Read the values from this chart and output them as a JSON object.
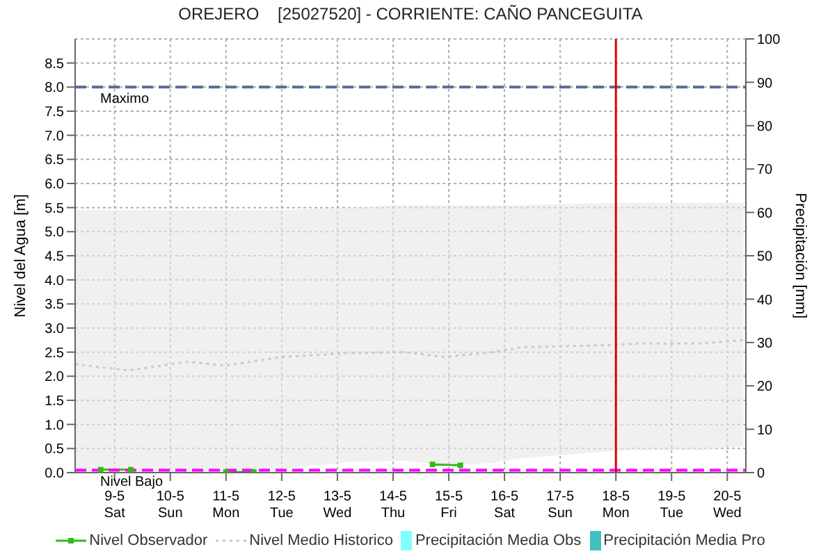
{
  "chart_data": {
    "type": "line",
    "title": "OREJERO    [25027520] - CORRIENTE: CAÑO PANCEGUITA",
    "ylabel": "Nivel del Agua [m]",
    "y2label": "Precipitación [mm]",
    "xlim": [
      "--05-08T07:00",
      "--05-20T08:00"
    ],
    "xticks": [
      {
        "value": "--05-09",
        "label": "9-5\nSat"
      },
      {
        "value": "--05-10",
        "label": "10-5\nSun"
      },
      {
        "value": "--05-11",
        "label": "11-5\nMon"
      },
      {
        "value": "--05-12",
        "label": "12-5\nTue"
      },
      {
        "value": "--05-13",
        "label": "13-5\nWed"
      },
      {
        "value": "--05-14",
        "label": "14-5\nThu"
      },
      {
        "value": "--05-15",
        "label": "15-5\nFri"
      },
      {
        "value": "--05-16",
        "label": "16-5\nSat"
      },
      {
        "value": "--05-17",
        "label": "17-5\nSun"
      },
      {
        "value": "--05-18",
        "label": "18-5\nMon"
      },
      {
        "value": "--05-19",
        "label": "19-5\nTue"
      },
      {
        "value": "--05-20",
        "label": "20-5\nWed"
      }
    ],
    "ylim": [
      0,
      9
    ],
    "yticks": [
      {
        "value": 0,
        "label": "0.0"
      },
      0.5,
      {
        "value": 1,
        "label": "1.0"
      },
      1.5,
      {
        "value": 2,
        "label": "2.0"
      },
      2.5,
      {
        "value": 3,
        "label": "3.0"
      },
      3.5,
      {
        "value": 4,
        "label": "4.0"
      },
      4.5,
      {
        "value": 5,
        "label": "5.0"
      },
      5.5,
      {
        "value": 6,
        "label": "6.0"
      },
      6.5,
      {
        "value": 7,
        "label": "7.0"
      },
      7.5,
      {
        "value": 8,
        "label": "8.0"
      },
      8.5
    ],
    "y2lim": [
      0,
      100
    ],
    "y2ticks": [
      0,
      10,
      20,
      30,
      40,
      50,
      60,
      70,
      80,
      90,
      100
    ],
    "grid": true,
    "legend": "bottom",
    "series": [
      {
        "name": "Nivel Observador",
        "color": "#33bb11",
        "marker": "square",
        "line_style": "solid",
        "x": [
          "--05-08T18:00",
          "--05-09T07:00",
          "--05-10",
          "--05-11",
          "--05-11T12:00",
          "--05-14",
          "--05-14T17:00",
          "--05-15T05:00"
        ],
        "values": [
          0.06,
          0.06,
          null,
          0.01,
          0.01,
          null,
          0.17,
          0.15
        ]
      },
      {
        "name": "Nivel Medio Historico",
        "color": "#c8c8c8",
        "marker": "none",
        "line_style": "dotted",
        "x": [
          "--05-08T07:00",
          "--05-09T06:00",
          "--05-10T07:00",
          "--05-11",
          "--05-12",
          "--05-13T05:00",
          "--05-14T05:00",
          "--05-14T22:00",
          "--05-15T19:00",
          "--05-16T07:00",
          "--05-18",
          "--05-18T10:00",
          "--05-19T12:00",
          "--05-20T07:00"
        ],
        "values": [
          2.25,
          2.12,
          2.3,
          2.22,
          2.4,
          2.48,
          2.5,
          2.4,
          2.5,
          2.6,
          2.65,
          2.68,
          2.68,
          2.75
        ],
        "lower": [
          0.03,
          0.03,
          0.03,
          0.03,
          0.08,
          0.22,
          0.25,
          0.15,
          0.2,
          0.3,
          0.45,
          0.47,
          0.47,
          0.55
        ],
        "upper": [
          5.45,
          5.45,
          5.45,
          5.45,
          5.45,
          5.5,
          5.55,
          5.55,
          5.55,
          5.55,
          5.6,
          5.6,
          5.6,
          5.6
        ]
      },
      {
        "name": "Precipitación Media Obs",
        "type": "bar",
        "color": "#80ffff"
      },
      {
        "name": "Precipitación Media Pro",
        "type": "bar",
        "color": "#40c0c0"
      }
    ],
    "ref_lines": [
      {
        "axis": "y",
        "value": 8,
        "label": "Maximo",
        "color": "#5a6a9a",
        "line_style": "dashed"
      },
      {
        "axis": "y",
        "value": 0.05,
        "label": "Nivel Bajo",
        "color": "#ff00ff",
        "line_style": "dashed"
      },
      {
        "axis": "x",
        "value": "--05-18",
        "label": null,
        "color": "#e00000",
        "line_style": "solid"
      }
    ]
  }
}
